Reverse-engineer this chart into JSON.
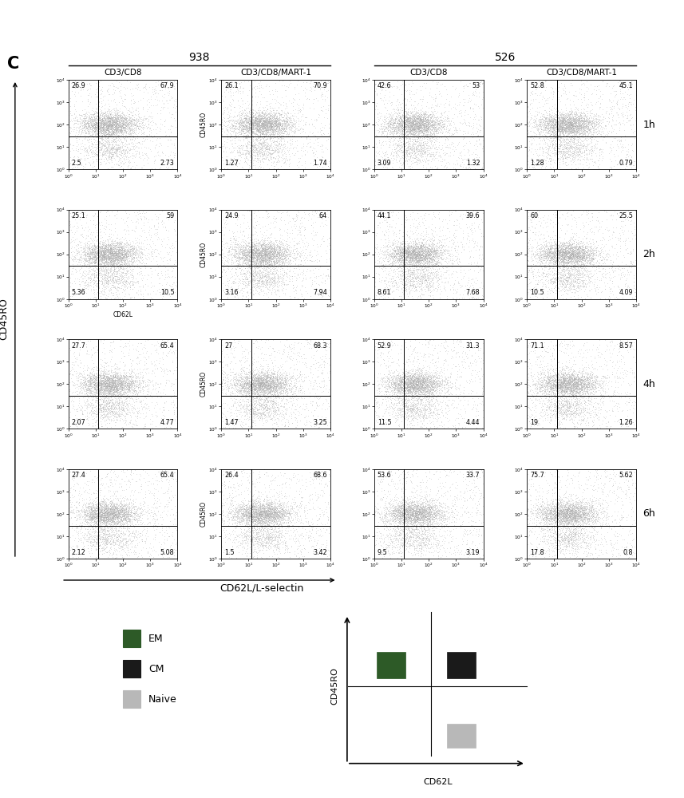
{
  "group_labels": [
    "938",
    "526"
  ],
  "col_headers": [
    "CD3/CD8",
    "CD3/CD8/MART-1",
    "CD3/CD8",
    "CD3/CD8/MART-1"
  ],
  "time_labels": [
    "1h",
    "2h",
    "4h",
    "6h"
  ],
  "panel_label": "C",
  "quadrant_values": [
    [
      [
        [
          "26.9",
          "67.9"
        ],
        [
          "2.5",
          "2.73"
        ]
      ],
      [
        [
          "26.1",
          "70.9"
        ],
        [
          "1.27",
          "1.74"
        ]
      ],
      [
        [
          "42.6",
          "53"
        ],
        [
          "3.09",
          "1.32"
        ]
      ],
      [
        [
          "52.8",
          "45.1"
        ],
        [
          "1.28",
          "0.79"
        ]
      ]
    ],
    [
      [
        [
          "25.1",
          "59"
        ],
        [
          "5.36",
          "10.5"
        ]
      ],
      [
        [
          "24.9",
          "64"
        ],
        [
          "3.16",
          "7.94"
        ]
      ],
      [
        [
          "44.1",
          "39.6"
        ],
        [
          "8.61",
          "7.68"
        ]
      ],
      [
        [
          "60",
          "25.5"
        ],
        [
          "10.5",
          "4.09"
        ]
      ]
    ],
    [
      [
        [
          "27.7",
          "65.4"
        ],
        [
          "2.07",
          "4.77"
        ]
      ],
      [
        [
          "27",
          "68.3"
        ],
        [
          "1.47",
          "3.25"
        ]
      ],
      [
        [
          "52.9",
          "31.3"
        ],
        [
          "11.5",
          "4.44"
        ]
      ],
      [
        [
          "71.1",
          "8.57"
        ],
        [
          "19",
          "1.26"
        ]
      ]
    ],
    [
      [
        [
          "27.4",
          "65.4"
        ],
        [
          "2.12",
          "5.08"
        ]
      ],
      [
        [
          "26.4",
          "68.6"
        ],
        [
          "1.5",
          "3.42"
        ]
      ],
      [
        [
          "53.6",
          "33.7"
        ],
        [
          "9.5",
          "3.19"
        ]
      ],
      [
        [
          "75.7",
          "5.62"
        ],
        [
          "17.8",
          "0.8"
        ]
      ]
    ]
  ],
  "em_color": "#2d5a27",
  "cm_color": "#1a1a1a",
  "naive_color": "#b8b8b8",
  "legend_items": [
    "EM",
    "CM",
    "Naive"
  ],
  "diagram_xlabel": "CD62L",
  "diagram_ylabel": "CD45RO",
  "main_ylabel": "CD45RO",
  "main_xlabel": "CD62L/L-selectin",
  "dot_color_center": "#888888",
  "dot_color_scatter": "#ccbbcc",
  "background_color": "#ffffff"
}
